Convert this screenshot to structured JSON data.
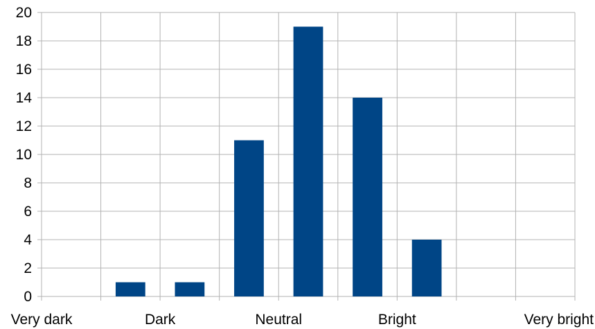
{
  "chart_data": {
    "type": "bar",
    "title": "",
    "xlabel": "",
    "ylabel": "",
    "categories": [
      "Very dark",
      "",
      "Dark",
      "",
      "Neutral",
      "",
      "Bright",
      "",
      "Very bright"
    ],
    "values": [
      0,
      1,
      1,
      11,
      19,
      14,
      4,
      0,
      0
    ],
    "ylim": [
      0,
      20
    ],
    "yticks": [
      0,
      2,
      4,
      6,
      8,
      10,
      12,
      14,
      16,
      18,
      20
    ],
    "ytick_labels": [
      "0",
      "2",
      "4",
      "6",
      "8",
      "10",
      "12",
      "14",
      "16",
      "18",
      "20"
    ],
    "grid": true,
    "legend": "none",
    "bar_color": "#004586"
  }
}
